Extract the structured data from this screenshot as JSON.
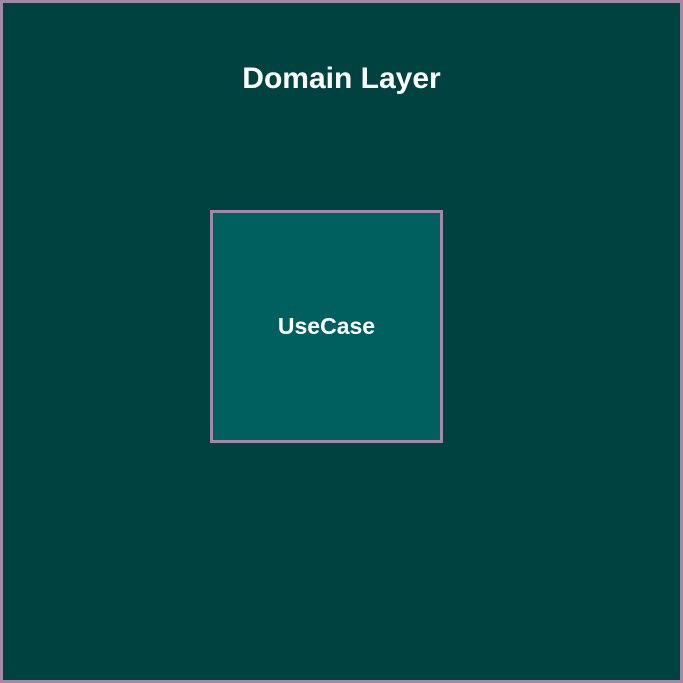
{
  "diagram": {
    "layer_title": "Domain Layer",
    "nodes": [
      {
        "label": "UseCase"
      }
    ]
  },
  "colors": {
    "background": "#00423f",
    "border": "#a388a8",
    "node_fill": "#006060",
    "text": "#ffffff"
  }
}
